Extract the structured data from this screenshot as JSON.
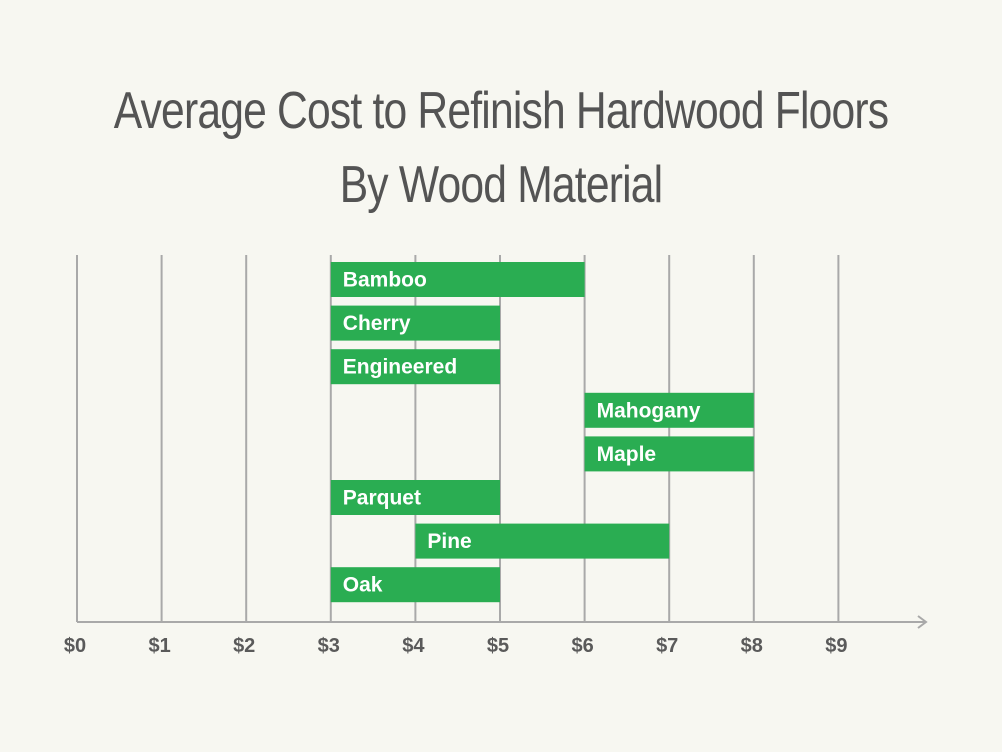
{
  "chart_data": {
    "type": "bar",
    "orientation": "horizontal-floating",
    "title_lines": [
      "Average Cost to Refinish Hardwood Floors",
      "By Wood Material"
    ],
    "xlim": [
      0,
      9
    ],
    "grid": true,
    "x_ticks": [
      "$0",
      "$1",
      "$2",
      "$3",
      "$4",
      "$5",
      "$6",
      "$7",
      "$8",
      "$9"
    ],
    "bar_color": "#2aad52",
    "categories": [
      "Bamboo",
      "Cherry",
      "Engineered",
      "Mahogany",
      "Maple",
      "Parquet",
      "Pine",
      "Oak"
    ],
    "ranges": [
      {
        "label": "Bamboo",
        "low": 3,
        "high": 6
      },
      {
        "label": "Cherry",
        "low": 3,
        "high": 5
      },
      {
        "label": "Engineered",
        "low": 3,
        "high": 5
      },
      {
        "label": "Mahogany",
        "low": 6,
        "high": 8
      },
      {
        "label": "Maple",
        "low": 6,
        "high": 8
      },
      {
        "label": "Parquet",
        "low": 3,
        "high": 5
      },
      {
        "label": "Pine",
        "low": 4,
        "high": 7
      },
      {
        "label": "Oak",
        "low": 3,
        "high": 5
      }
    ]
  }
}
